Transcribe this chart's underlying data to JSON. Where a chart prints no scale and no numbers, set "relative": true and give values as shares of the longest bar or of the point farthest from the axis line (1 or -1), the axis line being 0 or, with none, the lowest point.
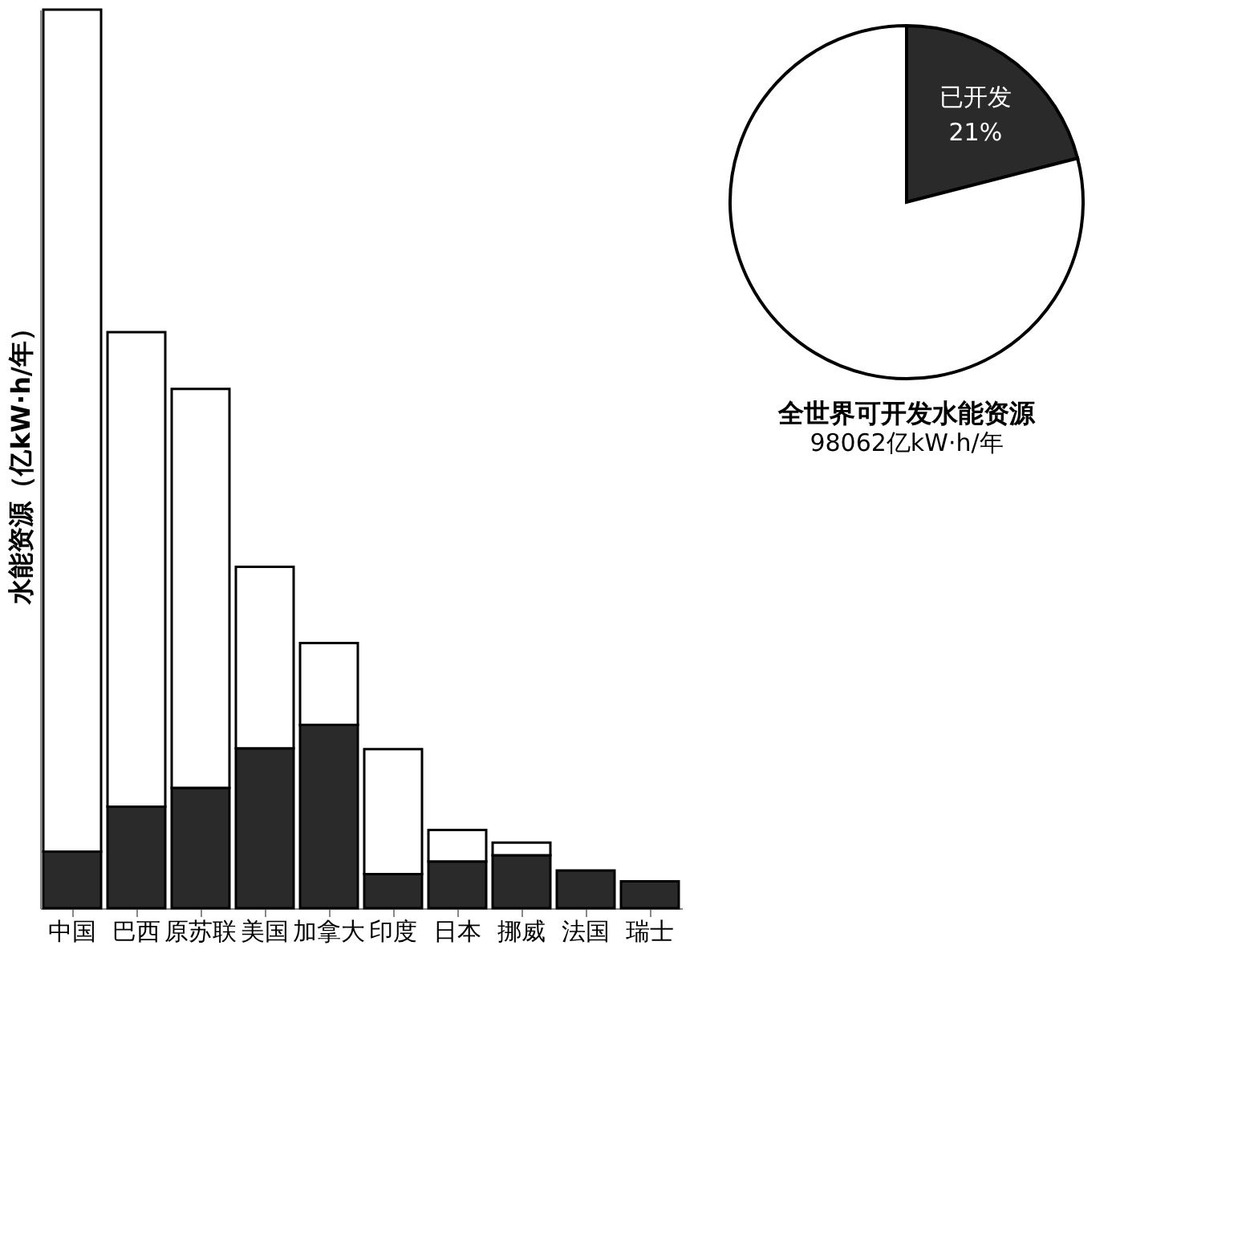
{
  "chart_data": [
    {
      "type": "bar",
      "ylabel": "水能资源（亿kW·h/年）",
      "categories": [
        "中国",
        "巴西",
        "原苏联",
        "美国",
        "加拿大",
        "印度",
        "日本",
        "挪威",
        "法国",
        "瑞士"
      ],
      "relative": true,
      "stacked": true,
      "legend": false,
      "grid": false,
      "series": [
        {
          "color": "#2a2a2a",
          "values": [
            0.063,
            0.113,
            0.134,
            0.178,
            0.204,
            0.038,
            0.052,
            0.059,
            0.042,
            0.03
          ]
        },
        {
          "color": "#ffffff",
          "values": [
            0.937,
            0.528,
            0.444,
            0.202,
            0.091,
            0.139,
            0.035,
            0.014,
            0,
            0
          ]
        }
      ]
    },
    {
      "type": "pie",
      "title": "全世界可开发水能资源",
      "subtitle": "98062亿kW·h/年",
      "categories": [
        "已开发",
        null
      ],
      "values": [
        21,
        79
      ],
      "colors": [
        "#2a2a2a",
        "#ffffff"
      ],
      "value_labels": [
        "21%",
        null
      ]
    }
  ]
}
